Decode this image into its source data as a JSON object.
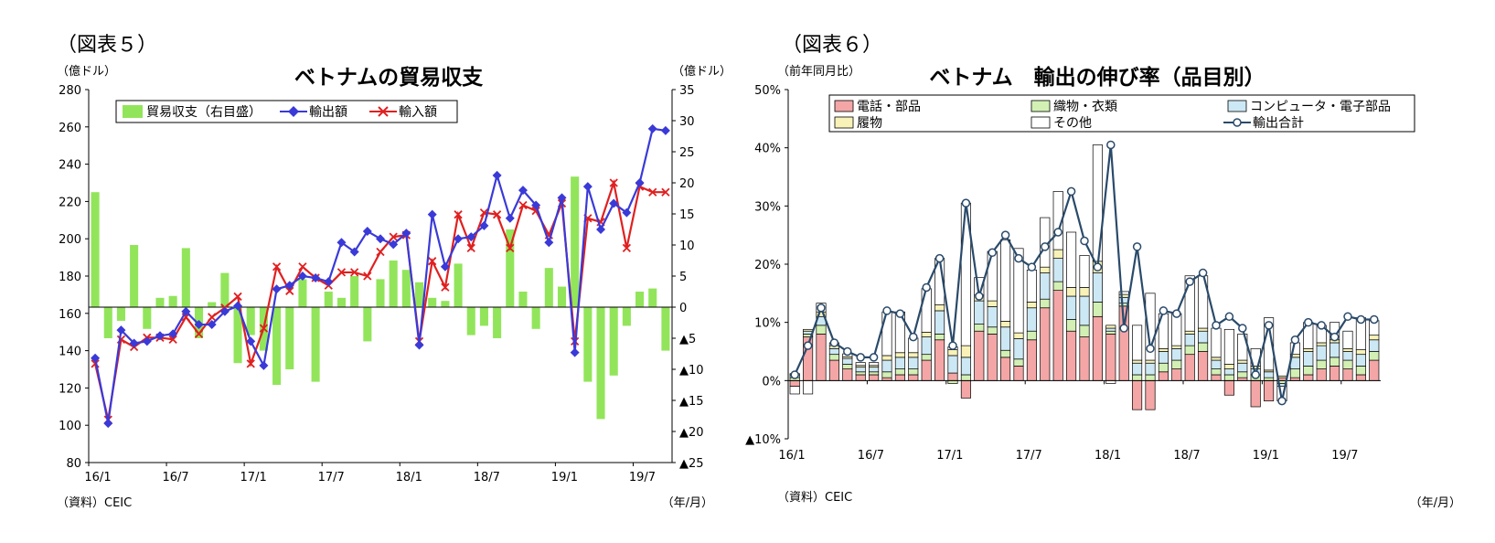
{
  "figure5": {
    "fig_label": "（図表５）",
    "source": "（資料）CEIC",
    "x_unit": "（年/月）",
    "chart_data": {
      "type": "bar+line",
      "title": "ベトナムの貿易収支",
      "y_left_unit": "（億ドル）",
      "y_right_unit": "（億ドル）",
      "y_left_lim": [
        80,
        280
      ],
      "y_left_ticks": [
        80,
        100,
        120,
        140,
        160,
        180,
        200,
        220,
        240,
        260,
        280
      ],
      "y_right_lim": [
        -25,
        35
      ],
      "y_right_ticks": [
        {
          "v": 35,
          "label": "35"
        },
        {
          "v": 30,
          "label": "30"
        },
        {
          "v": 25,
          "label": "25"
        },
        {
          "v": 20,
          "label": "20"
        },
        {
          "v": 15,
          "label": "15"
        },
        {
          "v": 10,
          "label": "10"
        },
        {
          "v": 5,
          "label": "5"
        },
        {
          "v": 0,
          "label": "0"
        },
        {
          "v": -5,
          "label": "▲5"
        },
        {
          "v": -10,
          "label": "▲10"
        },
        {
          "v": -15,
          "label": "▲15"
        },
        {
          "v": -20,
          "label": "▲20"
        },
        {
          "v": -25,
          "label": "▲25"
        }
      ],
      "x_tick_labels": [
        {
          "i": 0,
          "label": "16/1"
        },
        {
          "i": 6,
          "label": "16/7"
        },
        {
          "i": 12,
          "label": "17/1"
        },
        {
          "i": 18,
          "label": "17/7"
        },
        {
          "i": 24,
          "label": "18/1"
        },
        {
          "i": 30,
          "label": "18/7"
        },
        {
          "i": 36,
          "label": "19/1"
        },
        {
          "i": 42,
          "label": "19/7"
        }
      ],
      "n_periods": 45,
      "grid": false,
      "legend_position": "top-left",
      "series": [
        {
          "name": "貿易収支（右目盛）",
          "kind": "bar",
          "axis": "right",
          "color": "#92e55a",
          "values": [
            18.5,
            -5,
            -2.2,
            10,
            -3.5,
            1.5,
            1.8,
            9.5,
            -5,
            0.8,
            5.5,
            -9,
            -4.5,
            -7,
            -12.5,
            -10,
            4.5,
            -12,
            2.5,
            1.5,
            5,
            -5.5,
            4.5,
            7.5,
            6,
            4,
            1.5,
            1,
            7,
            -4.5,
            -3,
            -5,
            12.5,
            2.5,
            -3.5,
            6.3,
            3.3,
            21,
            -12,
            -18,
            -11,
            -3,
            2.5,
            3,
            -7
          ]
        },
        {
          "name": "輸出額",
          "kind": "line",
          "axis": "left",
          "color": "#3a3ad8",
          "values": [
            136,
            101,
            151,
            144,
            145,
            148,
            149,
            161,
            154,
            154,
            161,
            164,
            145,
            132,
            173,
            175,
            180,
            179,
            177,
            198,
            193,
            204,
            200,
            197,
            203,
            143,
            213,
            185,
            200,
            201,
            207,
            234,
            211,
            226,
            218,
            198,
            222,
            139,
            228,
            205,
            219,
            214,
            230,
            259,
            258
          ]
        },
        {
          "name": "輸入額",
          "kind": "line",
          "axis": "left",
          "color": "#e02020",
          "values": [
            133,
            103,
            146,
            142,
            147,
            147,
            146,
            158,
            149,
            158,
            163,
            169,
            133,
            152,
            185,
            172,
            185,
            179,
            175,
            182,
            182,
            180,
            193,
            201,
            202,
            145,
            188,
            174,
            213,
            195,
            214,
            213,
            195,
            218,
            215,
            202,
            219,
            145,
            211,
            209,
            230,
            195,
            228,
            225,
            225
          ]
        }
      ]
    }
  },
  "figure6": {
    "fig_label": "（図表６）",
    "source": "（資料）CEIC",
    "x_unit": "（年/月）",
    "chart_data": {
      "type": "stacked-bar+line",
      "title": "ベトナム　輸出の伸び率（品目別）",
      "y_unit": "（前年同月比）",
      "y_lim": [
        -10,
        50
      ],
      "y_ticks": [
        {
          "v": 50,
          "label": "50%"
        },
        {
          "v": 40,
          "label": "40%"
        },
        {
          "v": 30,
          "label": "30%"
        },
        {
          "v": 20,
          "label": "20%"
        },
        {
          "v": 10,
          "label": "10%"
        },
        {
          "v": 0,
          "label": "0%"
        },
        {
          "v": -10,
          "label": "▲10%"
        }
      ],
      "x_tick_labels": [
        {
          "i": 0,
          "label": "16/1"
        },
        {
          "i": 6,
          "label": "16/7"
        },
        {
          "i": 12,
          "label": "17/1"
        },
        {
          "i": 18,
          "label": "17/7"
        },
        {
          "i": 24,
          "label": "18/1"
        },
        {
          "i": 30,
          "label": "18/7"
        },
        {
          "i": 36,
          "label": "19/1"
        },
        {
          "i": 42,
          "label": "19/7"
        }
      ],
      "n_periods": 45,
      "grid": false,
      "legend_position": "top",
      "series": [
        {
          "name": "電話・部品",
          "kind": "bar",
          "color": "#f4a6a6",
          "values": [
            -1,
            7.5,
            8,
            3.5,
            2,
            1,
            1,
            0.5,
            1,
            1,
            3.5,
            7,
            1.3,
            -3,
            8.5,
            8,
            4,
            2.5,
            7,
            12.5,
            15.5,
            8.5,
            7.5,
            11,
            8,
            12.8,
            -5,
            -5,
            1.5,
            2,
            4.5,
            5,
            1,
            -2.5,
            0.5,
            -4.5,
            -3.5,
            0.5,
            0.5,
            1,
            2,
            2.5,
            2,
            1,
            3.5
          ]
        },
        {
          "name": "織物・衣類",
          "kind": "bar",
          "color": "#d3f0b4",
          "values": [
            0.5,
            0.5,
            1.5,
            1,
            0.8,
            0.5,
            0.5,
            1,
            1,
            1,
            1,
            1,
            -0.5,
            1,
            1.2,
            1.2,
            1.2,
            1.2,
            1.5,
            1.5,
            1.5,
            2,
            2,
            2.5,
            0.5,
            0.5,
            1,
            1,
            1.5,
            1.5,
            1.5,
            1.5,
            1,
            1,
            1,
            1,
            0.5,
            -0.5,
            1.5,
            1.5,
            1.5,
            1.5,
            1.5,
            1.5,
            1.5
          ]
        },
        {
          "name": "コンピュータ・電子部品",
          "kind": "bar",
          "color": "#cde8f5",
          "values": [
            0.5,
            0.5,
            1.5,
            1,
            1,
            0.8,
            0.8,
            2,
            2,
            2,
            3,
            4,
            3,
            3,
            4,
            3.5,
            4,
            3.5,
            4,
            4.5,
            4,
            4,
            5,
            5,
            0.5,
            1,
            2,
            2,
            2,
            2,
            2,
            2,
            1.5,
            1,
            1.5,
            1,
            1,
            -0.5,
            2,
            2.5,
            2.5,
            2.5,
            1.5,
            2,
            2
          ]
        },
        {
          "name": "履物",
          "kind": "bar",
          "color": "#f8f2b8",
          "values": [
            0.2,
            0.3,
            0.8,
            0.5,
            0.3,
            0.3,
            0.3,
            0.8,
            0.8,
            0.8,
            0.8,
            1,
            1,
            2,
            1,
            1,
            1,
            1,
            1,
            1,
            1.5,
            1.5,
            1.5,
            2,
            0.5,
            0.5,
            0.5,
            0.5,
            0.5,
            0.5,
            0.5,
            0.5,
            0.5,
            0.8,
            0.5,
            0.5,
            0.3,
            0.3,
            0.5,
            0.5,
            0.5,
            0.5,
            0.5,
            0.8,
            0.8
          ]
        },
        {
          "name": "その他",
          "kind": "bar",
          "color": "#ffffff",
          "values": [
            -1.3,
            -2.3,
            1.5,
            0.5,
            0.5,
            0.5,
            0.5,
            7.5,
            7,
            2.5,
            7.5,
            8,
            0.5,
            24.5,
            3,
            8.5,
            14,
            14.5,
            5.5,
            8.5,
            10,
            9.5,
            5.5,
            20,
            -0.5,
            0.5,
            6,
            11.5,
            6,
            5.5,
            9.5,
            9,
            5,
            6,
            4.5,
            3,
            9,
            -2.5,
            2,
            4.5,
            3,
            3,
            3,
            5.5,
            2.5
          ]
        },
        {
          "name": "輸出合計",
          "kind": "line",
          "color": "#2a4a6a",
          "marker_fill": "#ffffff",
          "values": [
            1,
            6,
            12.5,
            6.5,
            5,
            4,
            4,
            12,
            11.5,
            7.5,
            16,
            21,
            6,
            30.5,
            14.5,
            22,
            25,
            21,
            19.5,
            23,
            25.5,
            32.5,
            24,
            19.5,
            40.5,
            9,
            23,
            5.5,
            12,
            11.5,
            17,
            18.5,
            9.5,
            11,
            9,
            1,
            9.5,
            -3.5,
            7,
            10,
            9.5,
            7.5,
            11,
            10.5,
            10.5
          ]
        }
      ]
    }
  }
}
